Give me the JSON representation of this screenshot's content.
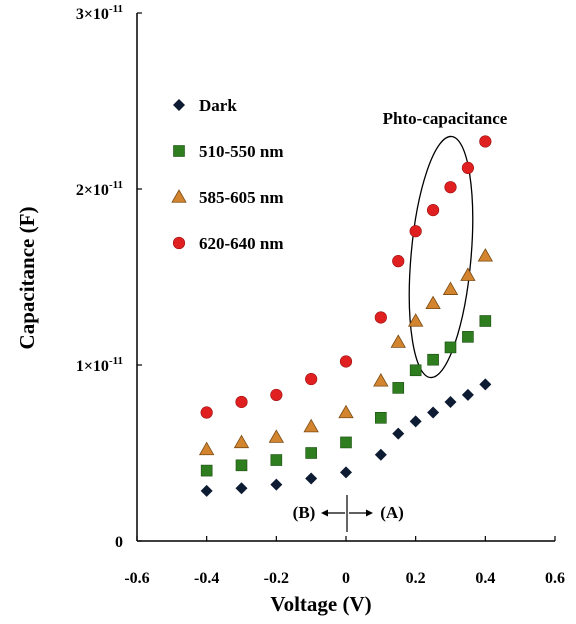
{
  "chart_data": {
    "type": "scatter",
    "title": "",
    "xlabel": "Voltage  (V)",
    "ylabel": "Capacitance  (F)",
    "xlim": [
      -0.6,
      0.6
    ],
    "ylim": [
      0,
      3e-11
    ],
    "x_ticks": [
      "-0.6",
      "-0.4",
      "-0.2",
      "0",
      "0.2",
      "0.4",
      "0.6"
    ],
    "x_tick_values": [
      -0.6,
      -0.4,
      -0.2,
      0,
      0.2,
      0.4,
      0.6
    ],
    "y_ticks": [
      {
        "value": 0,
        "text": "0",
        "sup": ""
      },
      {
        "value": 1e-11,
        "text": "1×10",
        "sup": "-11"
      },
      {
        "value": 2e-11,
        "text": "2×10",
        "sup": "-11"
      },
      {
        "value": 3e-11,
        "text": "3×10",
        "sup": "-11"
      }
    ],
    "legend_position": "top-left",
    "series": [
      {
        "name": "Dark",
        "marker": "diamond",
        "color": "#0d1b33",
        "x": [
          -0.4,
          -0.3,
          -0.2,
          -0.1,
          0,
          0.1,
          0.15,
          0.2,
          0.25,
          0.3,
          0.35,
          0.4
        ],
        "y": [
          2.85e-12,
          3e-12,
          3.2e-12,
          3.55e-12,
          3.9e-12,
          4.9e-12,
          6.1e-12,
          6.8e-12,
          7.3e-12,
          7.9e-12,
          8.3e-12,
          8.9e-12
        ]
      },
      {
        "name": "510-550 nm",
        "marker": "square",
        "color": "#2e7d1f",
        "x": [
          -0.4,
          -0.3,
          -0.2,
          -0.1,
          0,
          0.1,
          0.15,
          0.2,
          0.25,
          0.3,
          0.35,
          0.4
        ],
        "y": [
          4e-12,
          4.3e-12,
          4.6e-12,
          5e-12,
          5.6e-12,
          7e-12,
          8.7e-12,
          9.7e-12,
          1.03e-11,
          1.1e-11,
          1.16e-11,
          1.25e-11
        ]
      },
      {
        "name": "585-605 nm",
        "marker": "triangle",
        "color": "#d2842e",
        "x": [
          -0.4,
          -0.3,
          -0.2,
          -0.1,
          0,
          0.1,
          0.15,
          0.2,
          0.25,
          0.3,
          0.35,
          0.4
        ],
        "y": [
          5.2e-12,
          5.6e-12,
          5.9e-12,
          6.5e-12,
          7.3e-12,
          9.1e-12,
          1.13e-11,
          1.25e-11,
          1.35e-11,
          1.43e-11,
          1.51e-11,
          1.62e-11
        ]
      },
      {
        "name": "620-640 nm",
        "marker": "circle",
        "color": "#e02020",
        "x": [
          -0.4,
          -0.3,
          -0.2,
          -0.1,
          0,
          0.1,
          0.15,
          0.2,
          0.25,
          0.3,
          0.35,
          0.4
        ],
        "y": [
          7.3e-12,
          7.9e-12,
          8.3e-12,
          9.2e-12,
          1.02e-11,
          1.27e-11,
          1.59e-11,
          1.76e-11,
          1.88e-11,
          2.01e-11,
          2.12e-11,
          2.27e-11
        ]
      }
    ],
    "annotations": {
      "photo_label": "Phto-capacitance",
      "region_b": "(B)",
      "region_a": "(A)"
    }
  }
}
